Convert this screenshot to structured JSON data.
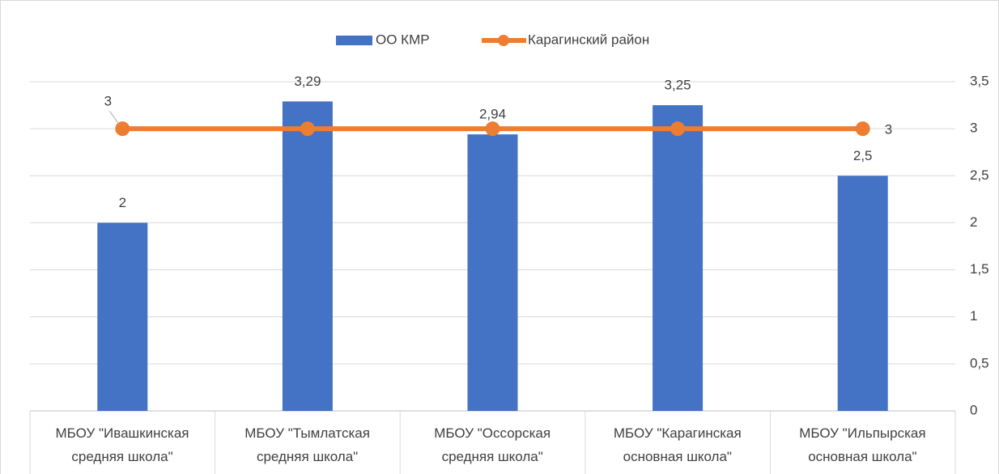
{
  "chart_data": {
    "type": "bar-line",
    "categories": [
      "МБОУ \"Ивашкинская\nсредняя школа\"",
      "МБОУ \"Тымлатская\nсредняя школа\"",
      "МБОУ \"Оссорская\nсредняя школа\"",
      "МБОУ \"Карагинская\nосновная школа\"",
      "МБОУ \"Ильпырская\nосновная школа\""
    ],
    "series": [
      {
        "name": "ОО КМР",
        "type": "bar",
        "color": "#4472c4",
        "values": [
          2,
          3.29,
          2.94,
          3.25,
          2.5
        ],
        "value_labels": [
          "2",
          "3,29",
          "2,94",
          "3,25",
          "2,5"
        ]
      },
      {
        "name": "Карагинский район",
        "type": "line",
        "color": "#ed7d31",
        "values": [
          3,
          3,
          3,
          3,
          3
        ],
        "value_labels": [
          "3",
          null,
          null,
          null,
          "3"
        ]
      }
    ],
    "ylim": [
      0,
      3.5
    ],
    "yticks": [
      0,
      {
        "value": 0.5,
        "label": "0,5"
      },
      1,
      {
        "value": 1.5,
        "label": "1,5"
      },
      2,
      {
        "value": 2.5,
        "label": "2,5"
      },
      3,
      {
        "value": 3.5,
        "label": "3,5"
      }
    ],
    "grid": true,
    "legend": "top"
  }
}
